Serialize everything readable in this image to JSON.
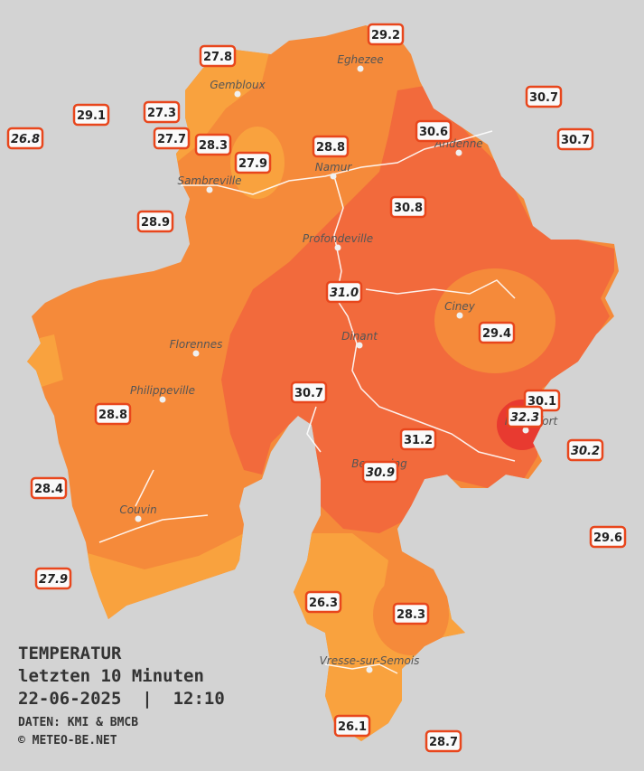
{
  "map": {
    "title": "TEMPERATUR",
    "subtitle": "letzten 10 Minuten",
    "datetime": "22-06-2025  |  12:10",
    "source": "DATEN: KMI & BMCB",
    "credit": "© METEO-BE.NET",
    "towns": [
      "Eghezee",
      "Gembloux",
      "Andenne",
      "Namur",
      "Sambreville",
      "Profondeville",
      "Ciney",
      "Dinant",
      "Florennes",
      "Philippeville",
      "Rochefort",
      "Beauraing",
      "Couvin",
      "Vresse-sur-Semois"
    ],
    "stations": [
      {
        "label": "29.2"
      },
      {
        "label": "27.8"
      },
      {
        "label": "30.7"
      },
      {
        "label": "29.1"
      },
      {
        "label": "27.3"
      },
      {
        "label": "30.6"
      },
      {
        "label": "30.7"
      },
      {
        "label": "26.8",
        "italic": true
      },
      {
        "label": "27.7"
      },
      {
        "label": "28.3"
      },
      {
        "label": "28.8"
      },
      {
        "label": "27.9"
      },
      {
        "label": "30.8"
      },
      {
        "label": "28.9"
      },
      {
        "label": "31.0",
        "italic": true
      },
      {
        "label": "29.4"
      },
      {
        "label": "30.7"
      },
      {
        "label": "30.1"
      },
      {
        "label": "32.3",
        "italic": true
      },
      {
        "label": "28.8"
      },
      {
        "label": "31.2"
      },
      {
        "label": "30.2",
        "italic": true
      },
      {
        "label": "30.9",
        "italic": true
      },
      {
        "label": "28.4"
      },
      {
        "label": "29.6"
      },
      {
        "label": "27.9",
        "italic": true
      },
      {
        "label": "26.3"
      },
      {
        "label": "28.3"
      },
      {
        "label": "26.1"
      },
      {
        "label": "28.7"
      }
    ]
  }
}
